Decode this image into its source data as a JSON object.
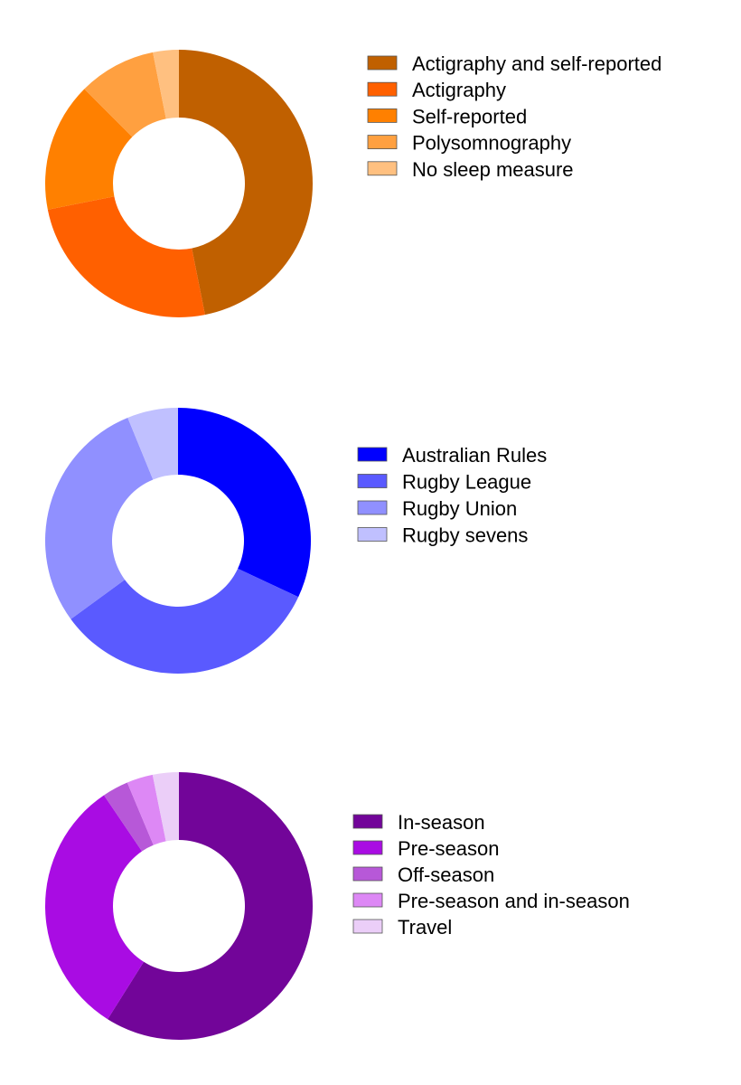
{
  "chart_data": [
    {
      "type": "pie",
      "donut": true,
      "legend_position": "right",
      "categories": [
        "Actigraphy and self-reported",
        "Actigraphy",
        "Self-reported",
        "Polysomnography",
        "No sleep measure"
      ],
      "values": [
        45,
        24,
        15,
        9,
        3
      ],
      "colors": [
        "#C06000",
        "#FF6000",
        "#FF8000",
        "#FFA040",
        "#FFC080"
      ]
    },
    {
      "type": "pie",
      "donut": true,
      "legend_position": "right",
      "categories": [
        "Australian Rules",
        "Rugby League",
        "Rugby Union",
        "Rugby sevens"
      ],
      "values": [
        31,
        32,
        28,
        6
      ],
      "colors": [
        "#0000FF",
        "#5A5AFF",
        "#9090FF",
        "#C0C0FF"
      ]
    },
    {
      "type": "pie",
      "donut": true,
      "legend_position": "right",
      "categories": [
        "In-season",
        "Pre-season",
        "Off-season",
        "Pre-season and in-season",
        "Travel"
      ],
      "values": [
        56,
        30,
        3,
        3,
        3
      ],
      "colors": [
        "#720599",
        "#A90CE3",
        "#B758D8",
        "#DD88F5",
        "#EBCEF8"
      ]
    }
  ]
}
